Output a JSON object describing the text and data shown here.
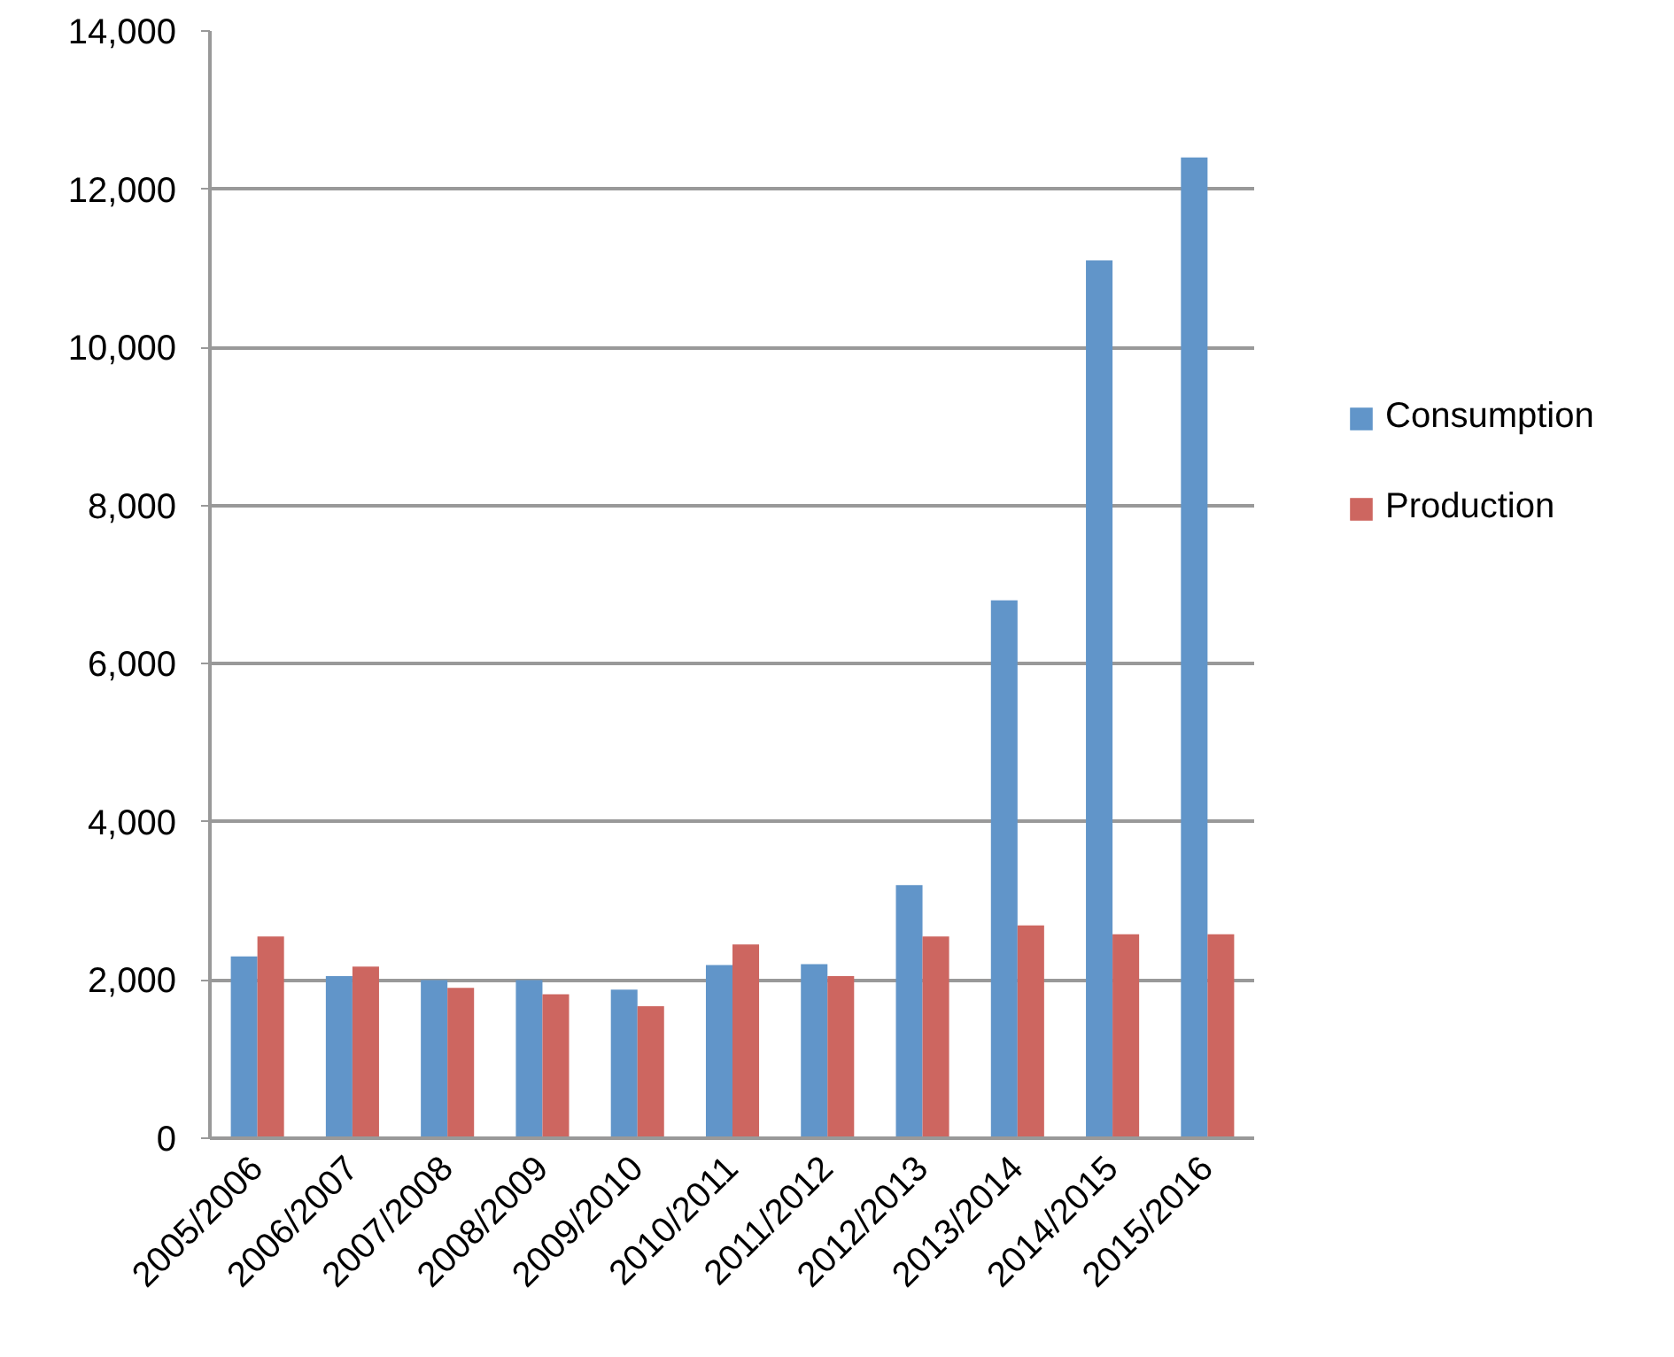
{
  "chart_data": {
    "type": "bar",
    "categories": [
      "2005/2006",
      "2006/2007",
      "2007/2008",
      "2008/2009",
      "2009/2010",
      "2010/2011",
      "2011/2012",
      "2012/2013",
      "2013/2014",
      "2014/2015",
      "2015/2016"
    ],
    "series": [
      {
        "name": "Consumption",
        "color": "#6195c9",
        "values": [
          2300,
          2050,
          2000,
          2000,
          1880,
          2190,
          2200,
          3200,
          6800,
          11100,
          12400
        ]
      },
      {
        "name": "Production",
        "color": "#cd6660",
        "values": [
          2550,
          2170,
          1900,
          1820,
          1670,
          2450,
          2050,
          2550,
          2690,
          2580,
          2580
        ]
      }
    ],
    "ylim": [
      0,
      14000
    ],
    "yticks": [
      0,
      {
        "value": 2000,
        "label": "2,000"
      },
      {
        "value": 4000,
        "label": "4,000"
      },
      {
        "value": 6000,
        "label": "6,000"
      },
      {
        "value": 8000,
        "label": "8,000"
      },
      {
        "value": 10000,
        "label": "10,000"
      },
      {
        "value": 12000,
        "label": "12,000"
      },
      {
        "value": 14000,
        "label": "14,000"
      }
    ],
    "grid": "y",
    "legend": "right"
  }
}
